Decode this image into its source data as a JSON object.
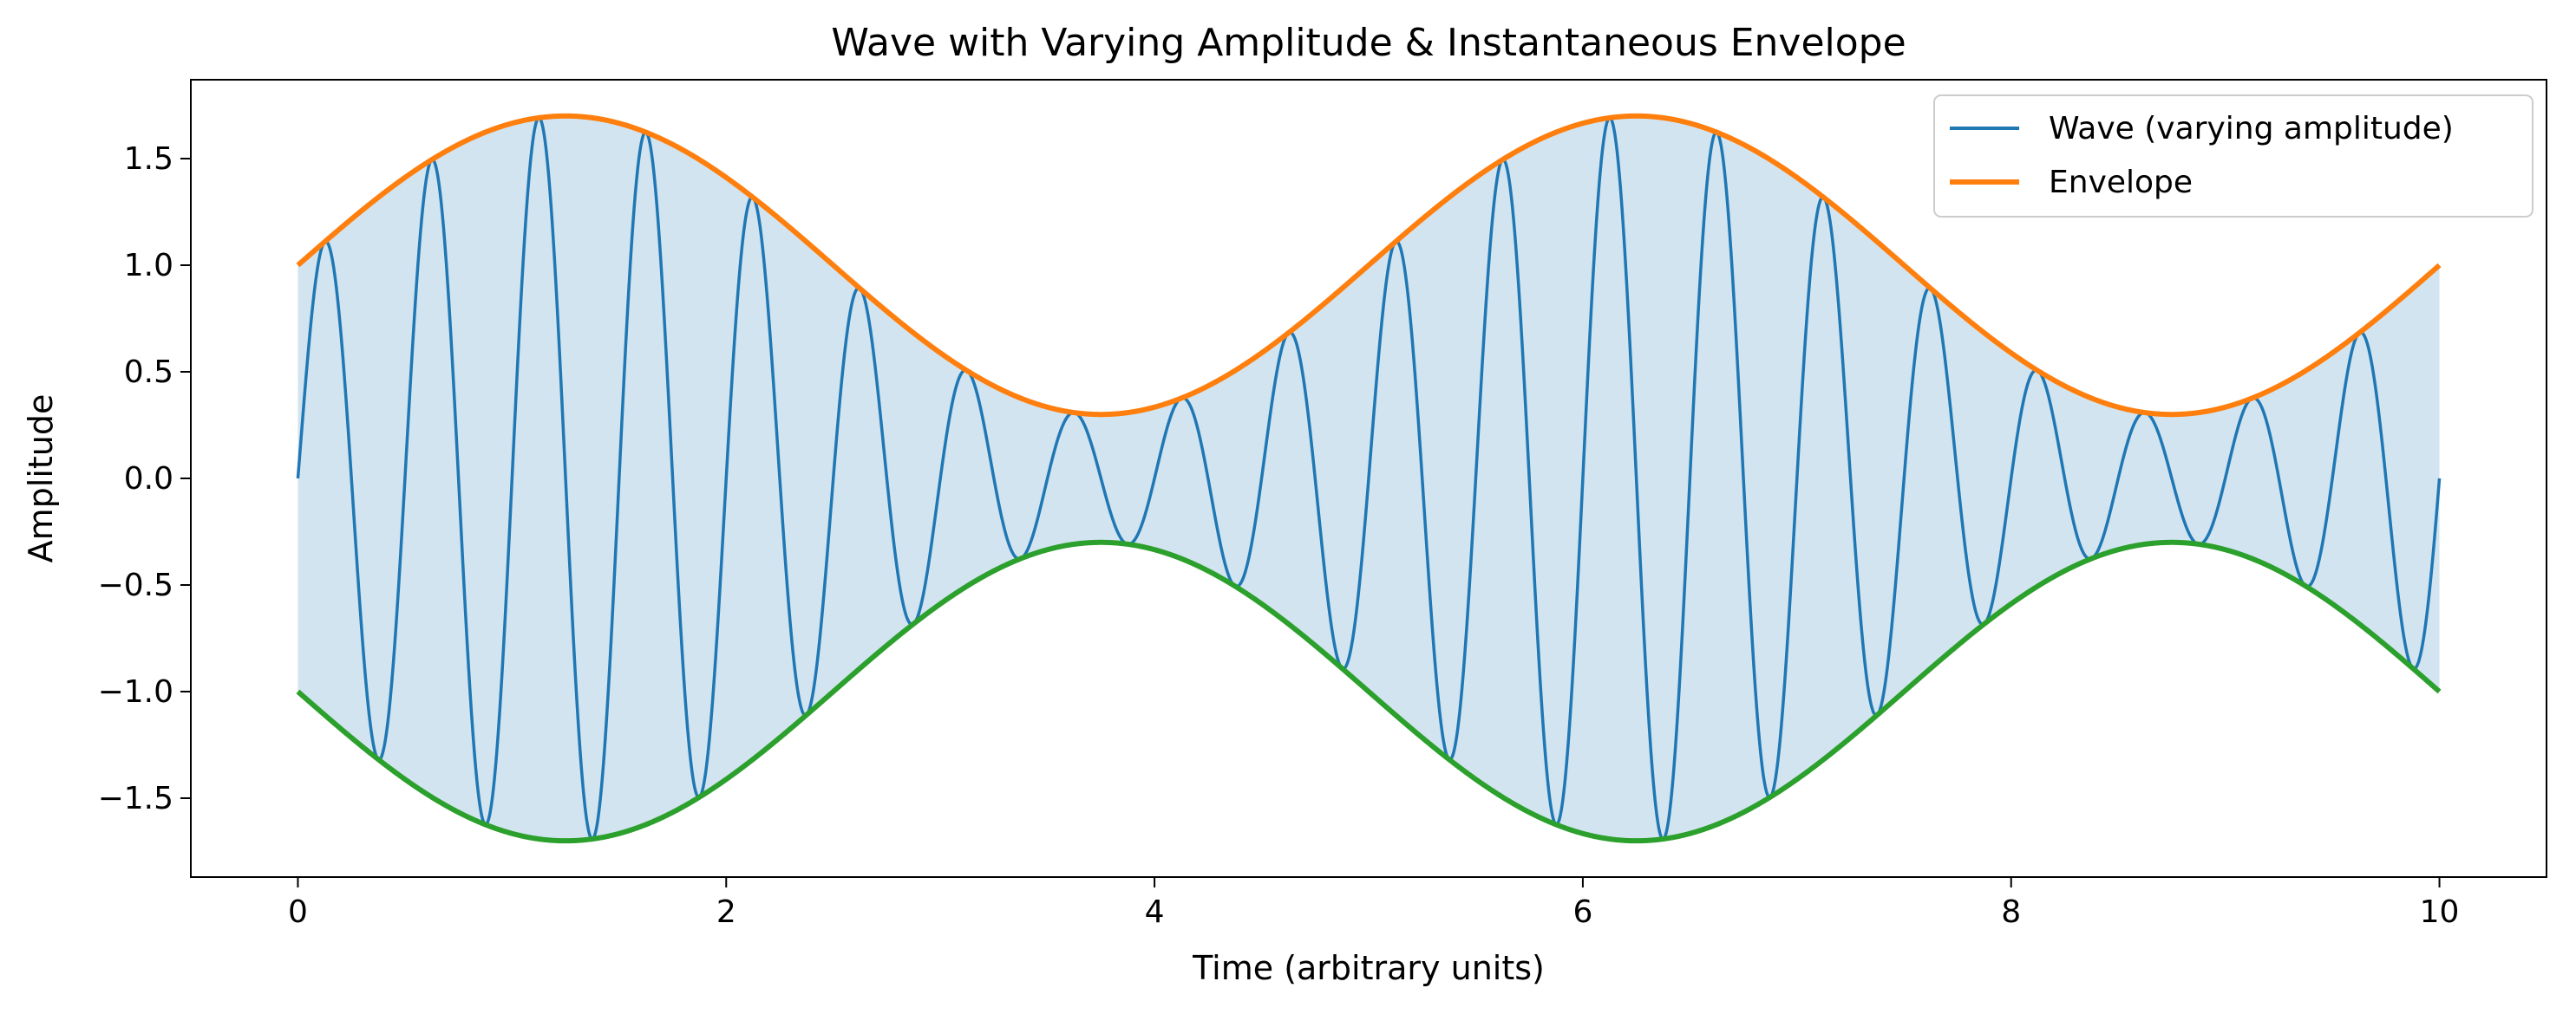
{
  "chart_data": {
    "type": "line",
    "title": "Wave with Varying Amplitude & Instantaneous Envelope",
    "xlabel": "Time (arbitrary units)",
    "ylabel": "Amplitude",
    "xlim": [
      -0.5,
      10.5
    ],
    "ylim": [
      -1.87,
      1.87
    ],
    "xticks": [
      0,
      2,
      4,
      6,
      8,
      10
    ],
    "xtick_labels": [
      "0",
      "2",
      "4",
      "6",
      "8",
      "10"
    ],
    "yticks": [
      -1.5,
      -1.0,
      -0.5,
      0.0,
      0.5,
      1.0,
      1.5
    ],
    "ytick_labels": [
      "−1.5",
      "−1.0",
      "−0.5",
      "0.0",
      "0.5",
      "1.0",
      "1.5"
    ],
    "grid": false,
    "legend_position": "top-right",
    "model": {
      "time_range": [
        0,
        10
      ],
      "amplitude_offset": 1.0,
      "amplitude_modulation": 0.7,
      "modulation_frequency": 0.2,
      "carrier_frequency": 2.0,
      "description": "wave = (1 + 0.7*sin(2*pi*0.2*t)) * sin(2*pi*2*t)"
    },
    "series": [
      {
        "name": "Wave (varying amplitude)",
        "color": "#1f77b4",
        "role": "wave",
        "in_legend": true
      },
      {
        "name": "Envelope",
        "color": "#ff7f0e",
        "role": "upper_envelope",
        "in_legend": true
      },
      {
        "name": "Lower envelope",
        "color": "#2ca02c",
        "role": "lower_envelope",
        "in_legend": false
      }
    ],
    "fill": {
      "color": "#1f77b4",
      "opacity": 0.2,
      "between": [
        "upper_envelope",
        "lower_envelope"
      ]
    },
    "annotations": []
  }
}
